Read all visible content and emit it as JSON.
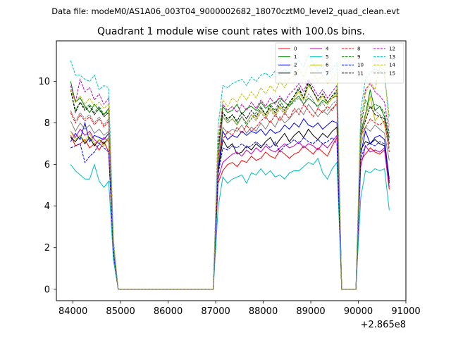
{
  "suptitle": "Data file: modeM0/AS1A06_003T04_9000002682_18070cztM0_level2_quad_clean.evt",
  "chart_data": {
    "type": "line",
    "title": "Quadrant 1 module wise count rates with 100.0s bins.",
    "xlabel": "",
    "ylabel": "",
    "offset_text": "+2.865e8",
    "xlim": [
      83650,
      91000
    ],
    "ylim": [
      -0.55,
      11.95
    ],
    "xticks": [
      84000,
      85000,
      86000,
      87000,
      88000,
      89000,
      90000,
      91000
    ],
    "xtick_labels": [
      "84000",
      "85000",
      "86000",
      "87000",
      "88000",
      "89000",
      "90000",
      "91000"
    ],
    "yticks": [
      0,
      2,
      4,
      6,
      8,
      10
    ],
    "ytick_labels": [
      "0",
      "2",
      "4",
      "6",
      "8",
      "10"
    ],
    "grid": false,
    "legend_position": "top-right",
    "x": [
      83950,
      84050,
      84150,
      84250,
      84350,
      84450,
      84550,
      84650,
      84750,
      84850,
      84950,
      85050,
      85150,
      85250,
      85350,
      85450,
      85550,
      85650,
      85750,
      85850,
      85950,
      86050,
      86150,
      86250,
      86350,
      86450,
      86550,
      86650,
      86750,
      86850,
      86950,
      87050,
      87150,
      87250,
      87350,
      87450,
      87550,
      87650,
      87750,
      87850,
      87950,
      88050,
      88150,
      88250,
      88350,
      88450,
      88550,
      88650,
      88750,
      88850,
      88950,
      89050,
      89150,
      89250,
      89350,
      89450,
      89550,
      89650,
      89750,
      89850,
      89950,
      90050,
      90150,
      90250,
      90350,
      90450,
      90550,
      90650
    ],
    "series": [
      {
        "name": "0",
        "color": "#ff0000",
        "dash": "solid",
        "values": [
          7.4,
          6.9,
          7.0,
          7.2,
          6.8,
          7.0,
          6.7,
          7.1,
          6.6,
          1.8,
          0,
          0,
          0,
          0,
          0,
          0,
          0,
          0,
          0,
          0,
          0,
          0,
          0,
          0,
          0,
          0,
          0,
          0,
          0,
          0,
          0,
          5.1,
          5.7,
          6.0,
          6.1,
          5.9,
          6.2,
          6.1,
          6.4,
          6.2,
          6.3,
          6.6,
          6.4,
          6.3,
          6.7,
          6.5,
          6.3,
          6.5,
          6.6,
          6.9,
          6.7,
          6.5,
          6.8,
          6.6,
          6.4,
          6.9,
          7.3,
          0,
          0,
          0,
          0,
          6.2,
          6.5,
          6.8,
          6.6,
          6.5,
          6.7,
          4.8
        ]
      },
      {
        "name": "1",
        "color": "#008000",
        "dash": "solid",
        "values": [
          10.0,
          9.0,
          9.2,
          8.8,
          8.5,
          8.9,
          8.6,
          8.4,
          8.7,
          2.1,
          0,
          0,
          0,
          0,
          0,
          0,
          0,
          0,
          0,
          0,
          0,
          0,
          0,
          0,
          0,
          0,
          0,
          0,
          0,
          0,
          0,
          6.3,
          8.8,
          8.5,
          8.6,
          8.9,
          8.4,
          8.7,
          8.8,
          8.6,
          9.0,
          8.7,
          8.9,
          9.0,
          9.2,
          9.0,
          8.8,
          9.1,
          9.3,
          8.9,
          9.2,
          9.0,
          8.8,
          9.1,
          8.9,
          9.2,
          9.3,
          0,
          0,
          0,
          0,
          7.6,
          8.4,
          9.6,
          8.6,
          8.8,
          8.3,
          7.3
        ]
      },
      {
        "name": "2",
        "color": "#0000ff",
        "dash": "solid",
        "values": [
          7.1,
          7.5,
          7.2,
          8.0,
          7.1,
          7.4,
          7.3,
          7.2,
          7.5,
          1.9,
          0,
          0,
          0,
          0,
          0,
          0,
          0,
          0,
          0,
          0,
          0,
          0,
          0,
          0,
          0,
          0,
          0,
          0,
          0,
          0,
          0,
          5.7,
          7.6,
          7.2,
          7.4,
          7.3,
          7.6,
          7.4,
          7.6,
          7.5,
          7.7,
          7.4,
          7.7,
          7.5,
          7.6,
          7.9,
          7.7,
          8.0,
          7.8,
          8.2,
          7.9,
          7.8,
          8.0,
          7.7,
          7.9,
          8.1,
          8.0,
          0,
          0,
          0,
          0,
          6.5,
          7.6,
          7.0,
          7.3,
          7.4,
          7.2,
          5.3
        ]
      },
      {
        "name": "3",
        "color": "#000000",
        "dash": "solid",
        "values": [
          7.3,
          7.1,
          7.4,
          7.0,
          7.3,
          6.9,
          7.2,
          7.0,
          7.3,
          1.8,
          0,
          0,
          0,
          0,
          0,
          0,
          0,
          0,
          0,
          0,
          0,
          0,
          0,
          0,
          0,
          0,
          0,
          0,
          0,
          0,
          0,
          5.6,
          7.2,
          6.8,
          7.0,
          6.5,
          6.6,
          6.9,
          6.7,
          7.0,
          6.8,
          7.1,
          7.3,
          6.9,
          7.2,
          7.5,
          7.1,
          7.4,
          7.6,
          7.3,
          7.7,
          7.4,
          7.2,
          7.5,
          7.3,
          7.6,
          7.8,
          0,
          0,
          0,
          0,
          6.7,
          7.1,
          7.0,
          7.2,
          7.0,
          6.9,
          5.1
        ]
      },
      {
        "name": "4",
        "color": "#bf00bf",
        "dash": "solid",
        "values": [
          7.6,
          7.3,
          7.7,
          7.4,
          7.6,
          7.2,
          7.0,
          7.3,
          7.1,
          1.9,
          0,
          0,
          0,
          0,
          0,
          0,
          0,
          0,
          0,
          0,
          0,
          0,
          0,
          0,
          0,
          0,
          0,
          0,
          0,
          0,
          0,
          5.3,
          6.1,
          6.3,
          6.5,
          6.6,
          6.4,
          6.7,
          6.5,
          6.8,
          6.6,
          6.9,
          6.7,
          6.6,
          6.8,
          7.0,
          6.8,
          6.9,
          7.1,
          6.8,
          7.0,
          6.9,
          6.7,
          7.0,
          6.8,
          7.1,
          7.4,
          0,
          0,
          0,
          0,
          5.9,
          6.9,
          6.6,
          6.7,
          6.6,
          6.8,
          4.9
        ]
      },
      {
        "name": "5",
        "color": "#00bfbf",
        "dash": "solid",
        "values": [
          6.0,
          5.7,
          5.5,
          5.3,
          5.3,
          6.0,
          5.2,
          4.9,
          5.2,
          1.4,
          0,
          0,
          0,
          0,
          0,
          0,
          0,
          0,
          0,
          0,
          0,
          0,
          0,
          0,
          0,
          0,
          0,
          0,
          0,
          0,
          0,
          3.9,
          5.4,
          5.1,
          5.3,
          5.4,
          5.5,
          5.1,
          5.6,
          5.5,
          5.8,
          5.5,
          5.7,
          5.4,
          5.5,
          5.3,
          5.6,
          5.7,
          5.7,
          5.9,
          6.1,
          6.0,
          6.3,
          5.6,
          5.3,
          5.8,
          6.1,
          0,
          0,
          0,
          0,
          4.4,
          5.7,
          5.6,
          5.8,
          5.7,
          5.8,
          3.8
        ]
      },
      {
        "name": "6",
        "color": "#bfbf00",
        "dash": "solid",
        "values": [
          7.6,
          7.2,
          7.4,
          7.1,
          7.5,
          7.0,
          7.2,
          6.9,
          7.3,
          1.8,
          0,
          0,
          0,
          0,
          0,
          0,
          0,
          0,
          0,
          0,
          0,
          0,
          0,
          0,
          0,
          0,
          0,
          0,
          0,
          0,
          0,
          6.2,
          8.3,
          8.0,
          8.2,
          7.9,
          8.3,
          8.0,
          8.4,
          8.2,
          8.6,
          8.3,
          8.7,
          8.4,
          8.8,
          8.5,
          8.9,
          9.2,
          9.5,
          9.1,
          9.8,
          9.5,
          9.0,
          9.3,
          8.9,
          9.2,
          9.4,
          0,
          0,
          0,
          0,
          7.1,
          8.3,
          9.3,
          8.1,
          8.4,
          7.9,
          6.8
        ]
      },
      {
        "name": "7",
        "color": "#808080",
        "dash": "solid",
        "values": [
          8.1,
          7.6,
          8.0,
          7.7,
          7.9,
          7.5,
          7.7,
          7.4,
          7.6,
          1.9,
          0,
          0,
          0,
          0,
          0,
          0,
          0,
          0,
          0,
          0,
          0,
          0,
          0,
          0,
          0,
          0,
          0,
          0,
          0,
          0,
          0,
          6.0,
          7.8,
          7.5,
          7.7,
          7.6,
          7.9,
          7.5,
          7.8,
          7.6,
          8.0,
          7.7,
          8.1,
          7.8,
          8.3,
          8.0,
          8.2,
          8.5,
          8.7,
          8.4,
          8.9,
          8.6,
          8.3,
          8.6,
          8.4,
          8.7,
          8.9,
          0,
          0,
          0,
          0,
          6.9,
          7.8,
          7.6,
          7.9,
          7.7,
          7.5,
          6.2
        ]
      },
      {
        "name": "8",
        "color": "#ff0000",
        "dash": "dashed",
        "values": [
          8.5,
          8.0,
          8.4,
          8.1,
          8.3,
          7.9,
          8.2,
          7.8,
          8.1,
          2.0,
          0,
          0,
          0,
          0,
          0,
          0,
          0,
          0,
          0,
          0,
          0,
          0,
          0,
          0,
          0,
          0,
          0,
          0,
          0,
          0,
          0,
          6.4,
          7.2,
          7.6,
          7.4,
          7.8,
          7.5,
          7.9,
          7.6,
          7.8,
          8.1,
          8.3,
          8.0,
          8.4,
          8.1,
          8.5,
          8.2,
          8.7,
          8.4,
          8.9,
          8.6,
          8.3,
          8.7,
          8.5,
          8.8,
          8.6,
          9.0,
          0,
          0,
          0,
          0,
          7.4,
          7.8,
          8.2,
          8.0,
          7.9,
          8.1,
          6.6
        ]
      },
      {
        "name": "9",
        "color": "#008000",
        "dash": "dashed",
        "values": [
          9.6,
          8.6,
          9.0,
          8.7,
          8.9,
          8.5,
          8.8,
          8.4,
          8.6,
          2.1,
          0,
          0,
          0,
          0,
          0,
          0,
          0,
          0,
          0,
          0,
          0,
          0,
          0,
          0,
          0,
          0,
          0,
          0,
          0,
          0,
          0,
          6.9,
          8.5,
          8.1,
          8.4,
          8.0,
          8.3,
          7.9,
          8.2,
          8.5,
          8.8,
          8.4,
          8.9,
          8.6,
          9.1,
          8.7,
          8.9,
          9.3,
          9.6,
          9.2,
          9.9,
          9.5,
          9.1,
          9.4,
          9.0,
          9.3,
          9.6,
          0,
          0,
          0,
          0,
          7.8,
          9.1,
          8.7,
          8.9,
          8.8,
          8.5,
          7.2
        ]
      },
      {
        "name": "10",
        "color": "#0000ff",
        "dash": "dashed",
        "values": [
          6.8,
          6.9,
          7.0,
          6.1,
          6.4,
          6.6,
          7.0,
          6.8,
          6.6,
          1.7,
          0,
          0,
          0,
          0,
          0,
          0,
          0,
          0,
          0,
          0,
          0,
          0,
          0,
          0,
          0,
          0,
          0,
          0,
          0,
          0,
          0,
          5.5,
          6.8,
          6.7,
          6.9,
          6.8,
          7.0,
          6.8,
          6.9,
          7.1,
          6.9,
          7.0,
          6.8,
          7.1,
          6.6,
          6.9,
          7.0,
          7.2,
          7.0,
          7.3,
          7.1,
          7.0,
          7.2,
          7.0,
          7.1,
          7.3,
          7.0,
          0,
          0,
          0,
          0,
          6.3,
          6.9,
          7.0,
          6.9,
          7.1,
          7.0,
          5.2
        ]
      },
      {
        "name": "11",
        "color": "#000000",
        "dash": "dashed",
        "values": [
          9.6,
          8.5,
          9.0,
          8.6,
          8.8,
          8.4,
          8.7,
          8.3,
          8.5,
          2.1,
          0,
          0,
          0,
          0,
          0,
          0,
          0,
          0,
          0,
          0,
          0,
          0,
          0,
          0,
          0,
          0,
          0,
          0,
          0,
          0,
          0,
          6.6,
          8.5,
          8.2,
          8.4,
          8.1,
          8.5,
          8.2,
          8.6,
          8.3,
          8.7,
          8.4,
          8.8,
          8.5,
          8.9,
          8.6,
          9.0,
          9.3,
          9.7,
          9.2,
          10.0,
          9.5,
          9.1,
          9.4,
          9.0,
          9.3,
          9.5,
          0,
          0,
          0,
          0,
          7.5,
          8.1,
          8.8,
          8.4,
          8.3,
          8.2,
          7.0
        ]
      },
      {
        "name": "12",
        "color": "#bf00bf",
        "dash": "dashed",
        "values": [
          9.8,
          9.0,
          10.1,
          9.5,
          9.7,
          9.1,
          9.4,
          8.9,
          9.2,
          2.2,
          0,
          0,
          0,
          0,
          0,
          0,
          0,
          0,
          0,
          0,
          0,
          0,
          0,
          0,
          0,
          0,
          0,
          0,
          0,
          0,
          0,
          7.0,
          8.9,
          8.6,
          8.8,
          8.5,
          8.9,
          8.6,
          9.0,
          8.7,
          9.1,
          8.8,
          9.2,
          8.9,
          9.3,
          9.0,
          9.4,
          9.6,
          9.9,
          9.5,
          10.1,
          9.7,
          9.3,
          9.6,
          9.2,
          9.5,
          9.8,
          0,
          0,
          0,
          0,
          8.0,
          9.6,
          9.9,
          9.5,
          9.3,
          9.0,
          7.5
        ]
      },
      {
        "name": "13",
        "color": "#00bfbf",
        "dash": "dashed",
        "values": [
          11.0,
          10.3,
          10.3,
          10.1,
          10.0,
          10.3,
          9.6,
          9.8,
          9.7,
          2.4,
          0,
          0,
          0,
          0,
          0,
          0,
          0,
          0,
          0,
          0,
          0,
          0,
          0,
          0,
          0,
          0,
          0,
          0,
          0,
          0,
          0,
          7.8,
          9.8,
          9.7,
          9.9,
          10.0,
          10.1,
          9.8,
          10.2,
          10.0,
          10.3,
          10.4,
          10.2,
          10.5,
          10.3,
          10.6,
          10.4,
          10.8,
          11.0,
          10.7,
          11.3,
          10.9,
          10.5,
          10.8,
          10.3,
          10.6,
          10.9,
          0,
          0,
          0,
          0,
          8.6,
          10.1,
          10.4,
          10.6,
          10.5,
          10.3,
          8.3
        ]
      },
      {
        "name": "14",
        "color": "#bfbf00",
        "dash": "dashed",
        "values": [
          9.6,
          9.0,
          9.3,
          8.9,
          9.2,
          8.8,
          9.0,
          8.7,
          8.9,
          2.2,
          0,
          0,
          0,
          0,
          0,
          0,
          0,
          0,
          0,
          0,
          0,
          0,
          0,
          0,
          0,
          0,
          0,
          0,
          0,
          0,
          0,
          7.2,
          9.1,
          8.8,
          9.2,
          9.0,
          9.4,
          9.1,
          9.5,
          9.2,
          9.7,
          9.4,
          9.8,
          9.5,
          10.0,
          9.7,
          10.1,
          10.3,
          10.6,
          10.2,
          10.8,
          10.4,
          10.0,
          10.3,
          9.9,
          10.2,
          10.4,
          0,
          0,
          0,
          0,
          8.2,
          9.4,
          10.0,
          9.6,
          10.7,
          10.5,
          7.8
        ]
      },
      {
        "name": "15",
        "color": "#808080",
        "dash": "dashed",
        "values": [
          8.6,
          8.1,
          8.5,
          8.2,
          8.4,
          8.0,
          8.3,
          7.9,
          8.2,
          2.0,
          0,
          0,
          0,
          0,
          0,
          0,
          0,
          0,
          0,
          0,
          0,
          0,
          0,
          0,
          0,
          0,
          0,
          0,
          0,
          0,
          0,
          6.5,
          8.3,
          8.0,
          8.2,
          7.9,
          8.3,
          8.0,
          8.4,
          8.1,
          8.5,
          8.2,
          8.6,
          8.3,
          8.7,
          8.4,
          8.8,
          9.0,
          9.2,
          8.9,
          9.4,
          9.1,
          8.7,
          9.0,
          8.6,
          8.9,
          9.1,
          0,
          0,
          0,
          0,
          7.3,
          8.5,
          8.8,
          8.6,
          8.4,
          8.2,
          6.8
        ]
      }
    ]
  }
}
